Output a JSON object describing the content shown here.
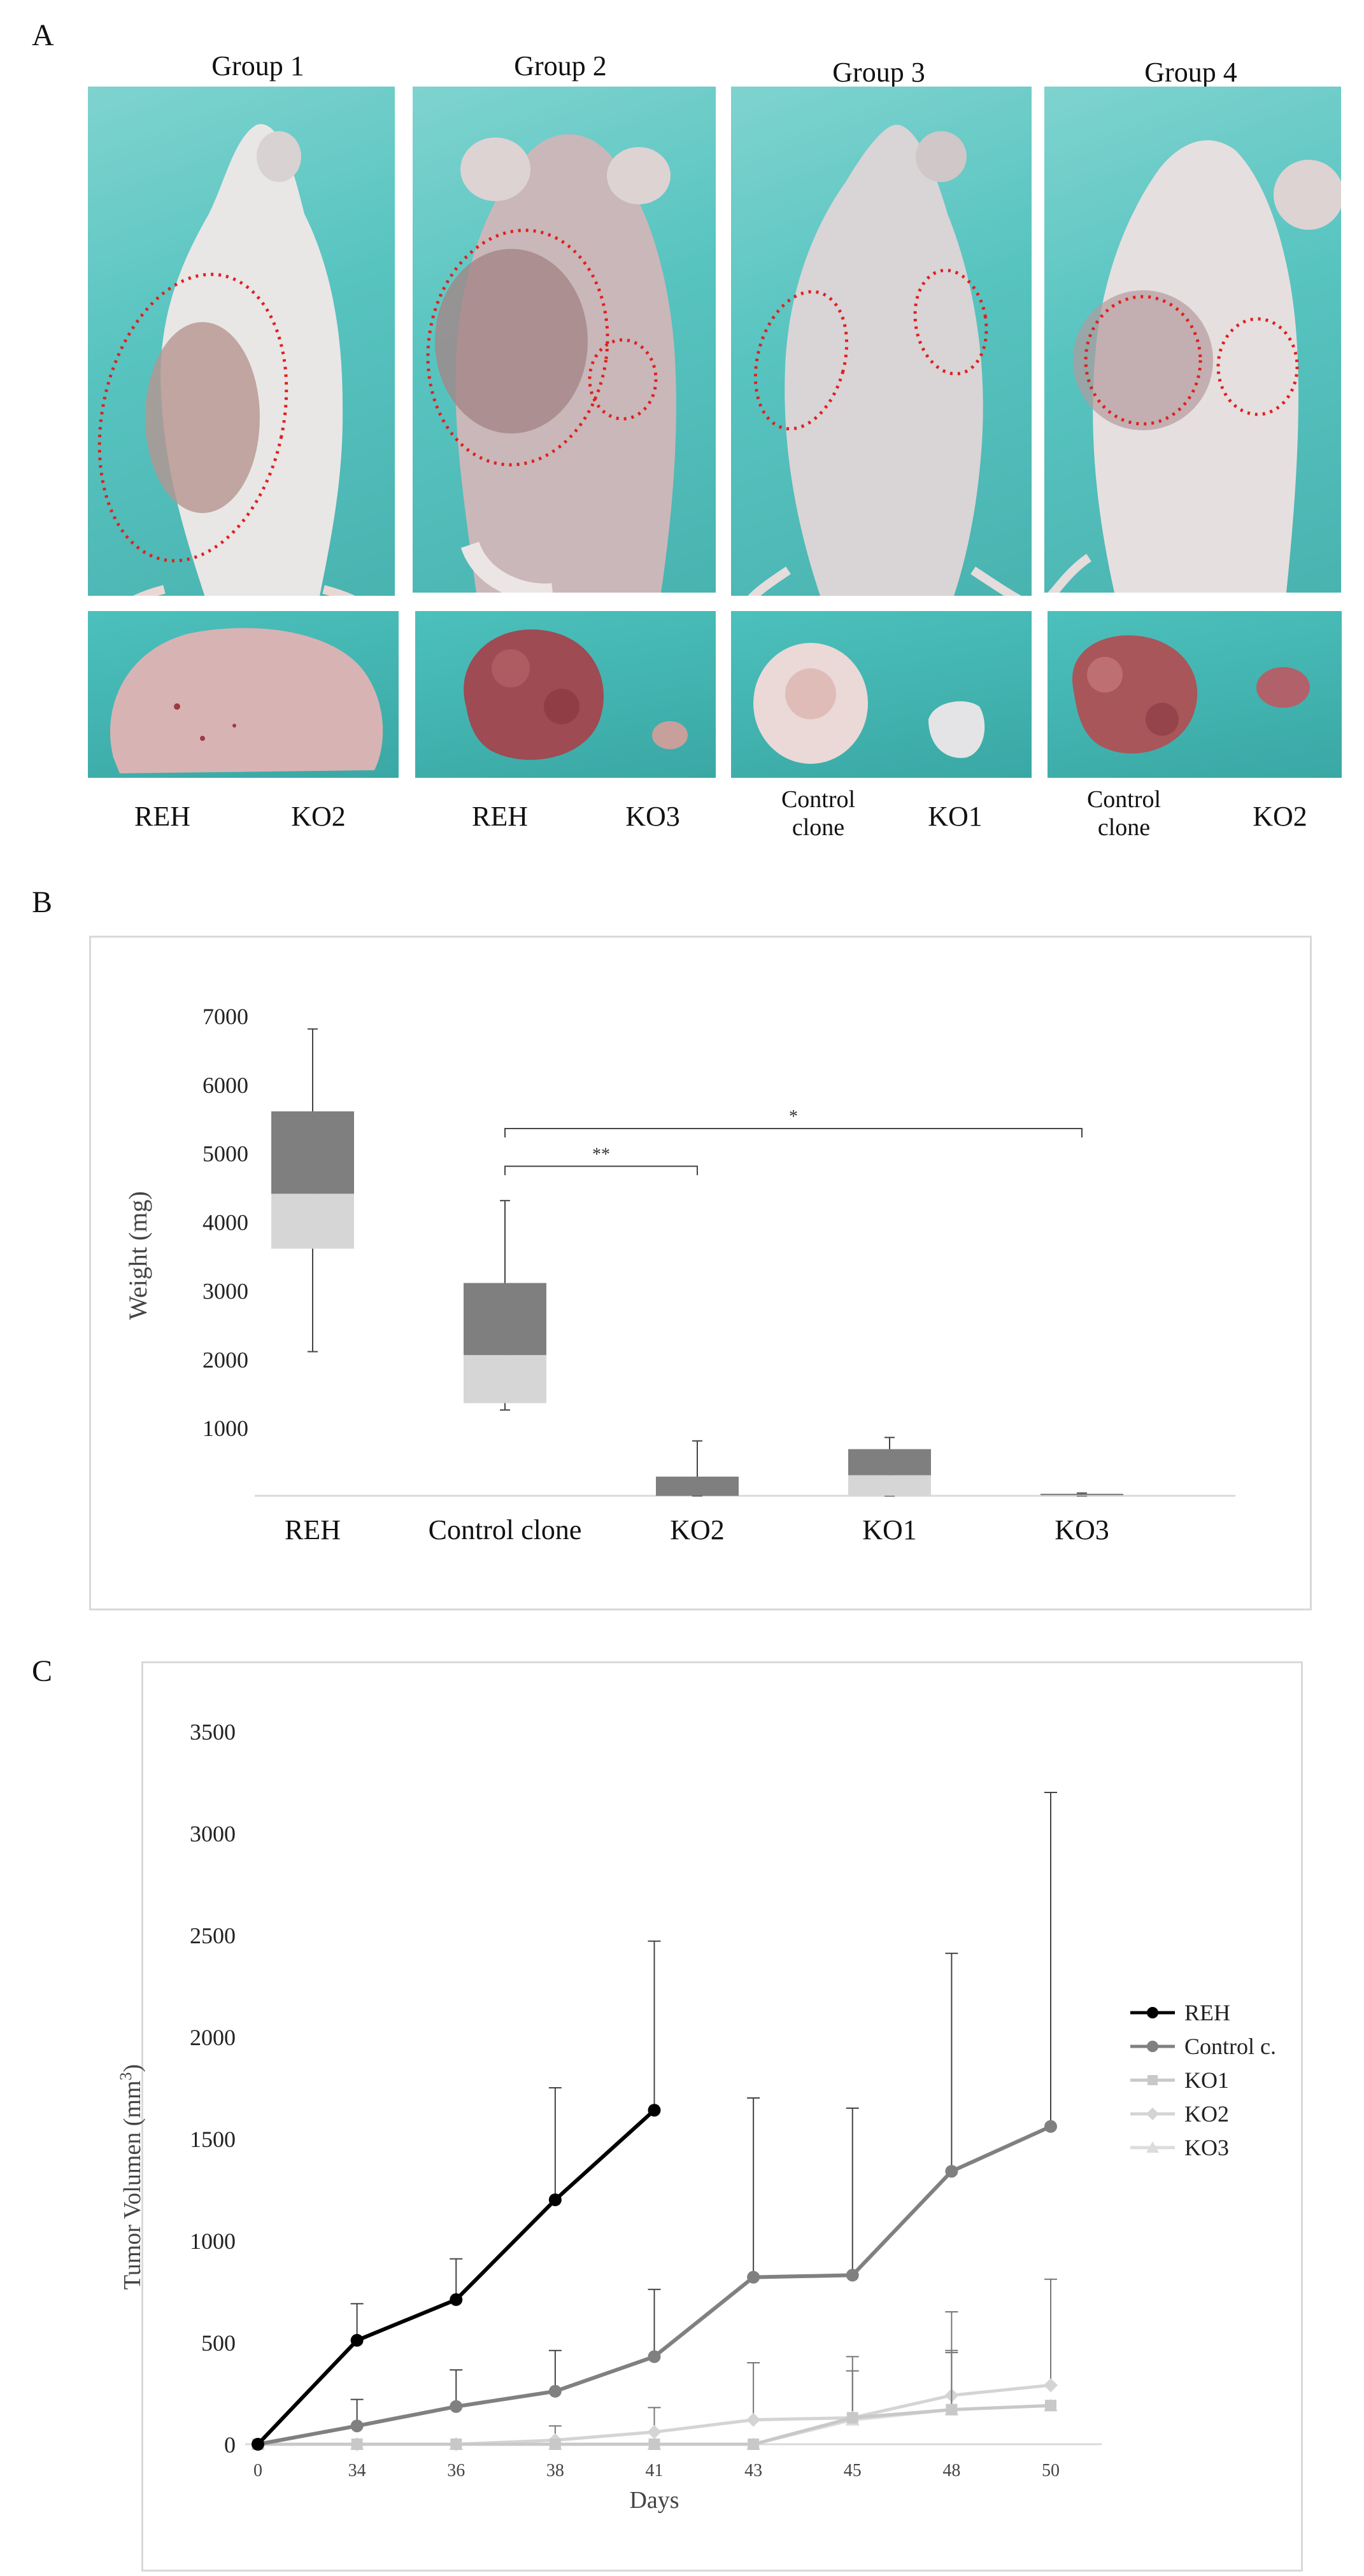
{
  "panel_a": {
    "letter": "A",
    "groups": [
      {
        "title": "Group 1",
        "captions": [
          "REH",
          "KO2"
        ]
      },
      {
        "title": "Group 2",
        "captions": [
          "REH",
          "KO3"
        ]
      },
      {
        "title": "Group 3",
        "captions": [
          "Control\nclone",
          "KO1"
        ]
      },
      {
        "title": "Group 4",
        "captions": [
          "Control\nclone",
          "KO2"
        ]
      }
    ],
    "colors": {
      "background": "#58c4c0",
      "circle": "#e0201e"
    }
  },
  "panel_b": {
    "letter": "B"
  },
  "panel_c": {
    "letter": "C"
  },
  "chart_data": [
    {
      "type": "box",
      "ylabel": "Weight (mg)",
      "yticks": [
        1000,
        2000,
        3000,
        4000,
        5000,
        6000,
        7000
      ],
      "ylim": [
        0,
        7000
      ],
      "categories": [
        "REH",
        "Control clone",
        "KO2",
        "KO1",
        "KO3"
      ],
      "boxes": [
        {
          "category": "REH",
          "min": 2100,
          "q1": 3600,
          "median": 4400,
          "q3": 5600,
          "max": 6800
        },
        {
          "category": "Control clone",
          "min": 1250,
          "q1": 1350,
          "median": 2050,
          "q3": 3100,
          "max": 4300
        },
        {
          "category": "KO2",
          "min": 0,
          "q1": 0,
          "median": 0,
          "q3": 280,
          "max": 800
        },
        {
          "category": "KO1",
          "min": 0,
          "q1": 0,
          "median": 300,
          "q3": 680,
          "max": 850
        },
        {
          "category": "KO3",
          "min": 0,
          "q1": 0,
          "median": 10,
          "q3": 30,
          "max": 40
        }
      ],
      "significance": [
        {
          "from": "Control clone",
          "to": "KO2",
          "label": "**"
        },
        {
          "from": "Control clone",
          "to": "KO3",
          "label": "*"
        }
      ],
      "colors": {
        "upper": "#7f7f7f",
        "lower": "#d6d6d6",
        "whisker": "#444444"
      }
    },
    {
      "type": "line",
      "xlabel": "Days",
      "ylabel": "Tumor Volumen (mm",
      "ylabel_sup": "3",
      "ylabel_end": ")",
      "x": [
        "0",
        "34",
        "36",
        "38",
        "41",
        "43",
        "45",
        "48",
        "50"
      ],
      "yticks": [
        0,
        500,
        1000,
        1500,
        2000,
        2500,
        3000,
        3500
      ],
      "ylim": [
        0,
        3500
      ],
      "series": [
        {
          "name": "REH",
          "color": "#000000",
          "marker": "circle",
          "values": [
            0,
            510,
            710,
            1200,
            1640,
            null,
            null,
            null,
            null
          ],
          "err": [
            0,
            180,
            200,
            550,
            830,
            null,
            null,
            null,
            null
          ]
        },
        {
          "name": "Control c.",
          "color": "#808080",
          "marker": "circle",
          "values": [
            0,
            90,
            185,
            260,
            430,
            820,
            830,
            1340,
            1560
          ],
          "err": [
            0,
            130,
            180,
            200,
            330,
            880,
            820,
            1070,
            1640
          ]
        },
        {
          "name": "KO1",
          "color": "#c8c8c8",
          "marker": "square",
          "values": [
            0,
            0,
            0,
            0,
            0,
            0,
            130,
            170,
            190
          ],
          "err": [
            0,
            0,
            0,
            0,
            0,
            0,
            0,
            280,
            0
          ]
        },
        {
          "name": "KO2",
          "color": "#d4d4d4",
          "marker": "diamond",
          "values": [
            0,
            0,
            0,
            20,
            60,
            120,
            130,
            240,
            290
          ],
          "err": [
            0,
            0,
            0,
            70,
            120,
            280,
            300,
            410,
            520
          ]
        },
        {
          "name": "KO3",
          "color": "#dcdcdc",
          "marker": "triangle",
          "values": [
            0,
            0,
            0,
            0,
            0,
            0,
            120,
            170,
            190
          ],
          "err": [
            0,
            0,
            0,
            0,
            0,
            0,
            240,
            290,
            0
          ]
        }
      ]
    }
  ]
}
